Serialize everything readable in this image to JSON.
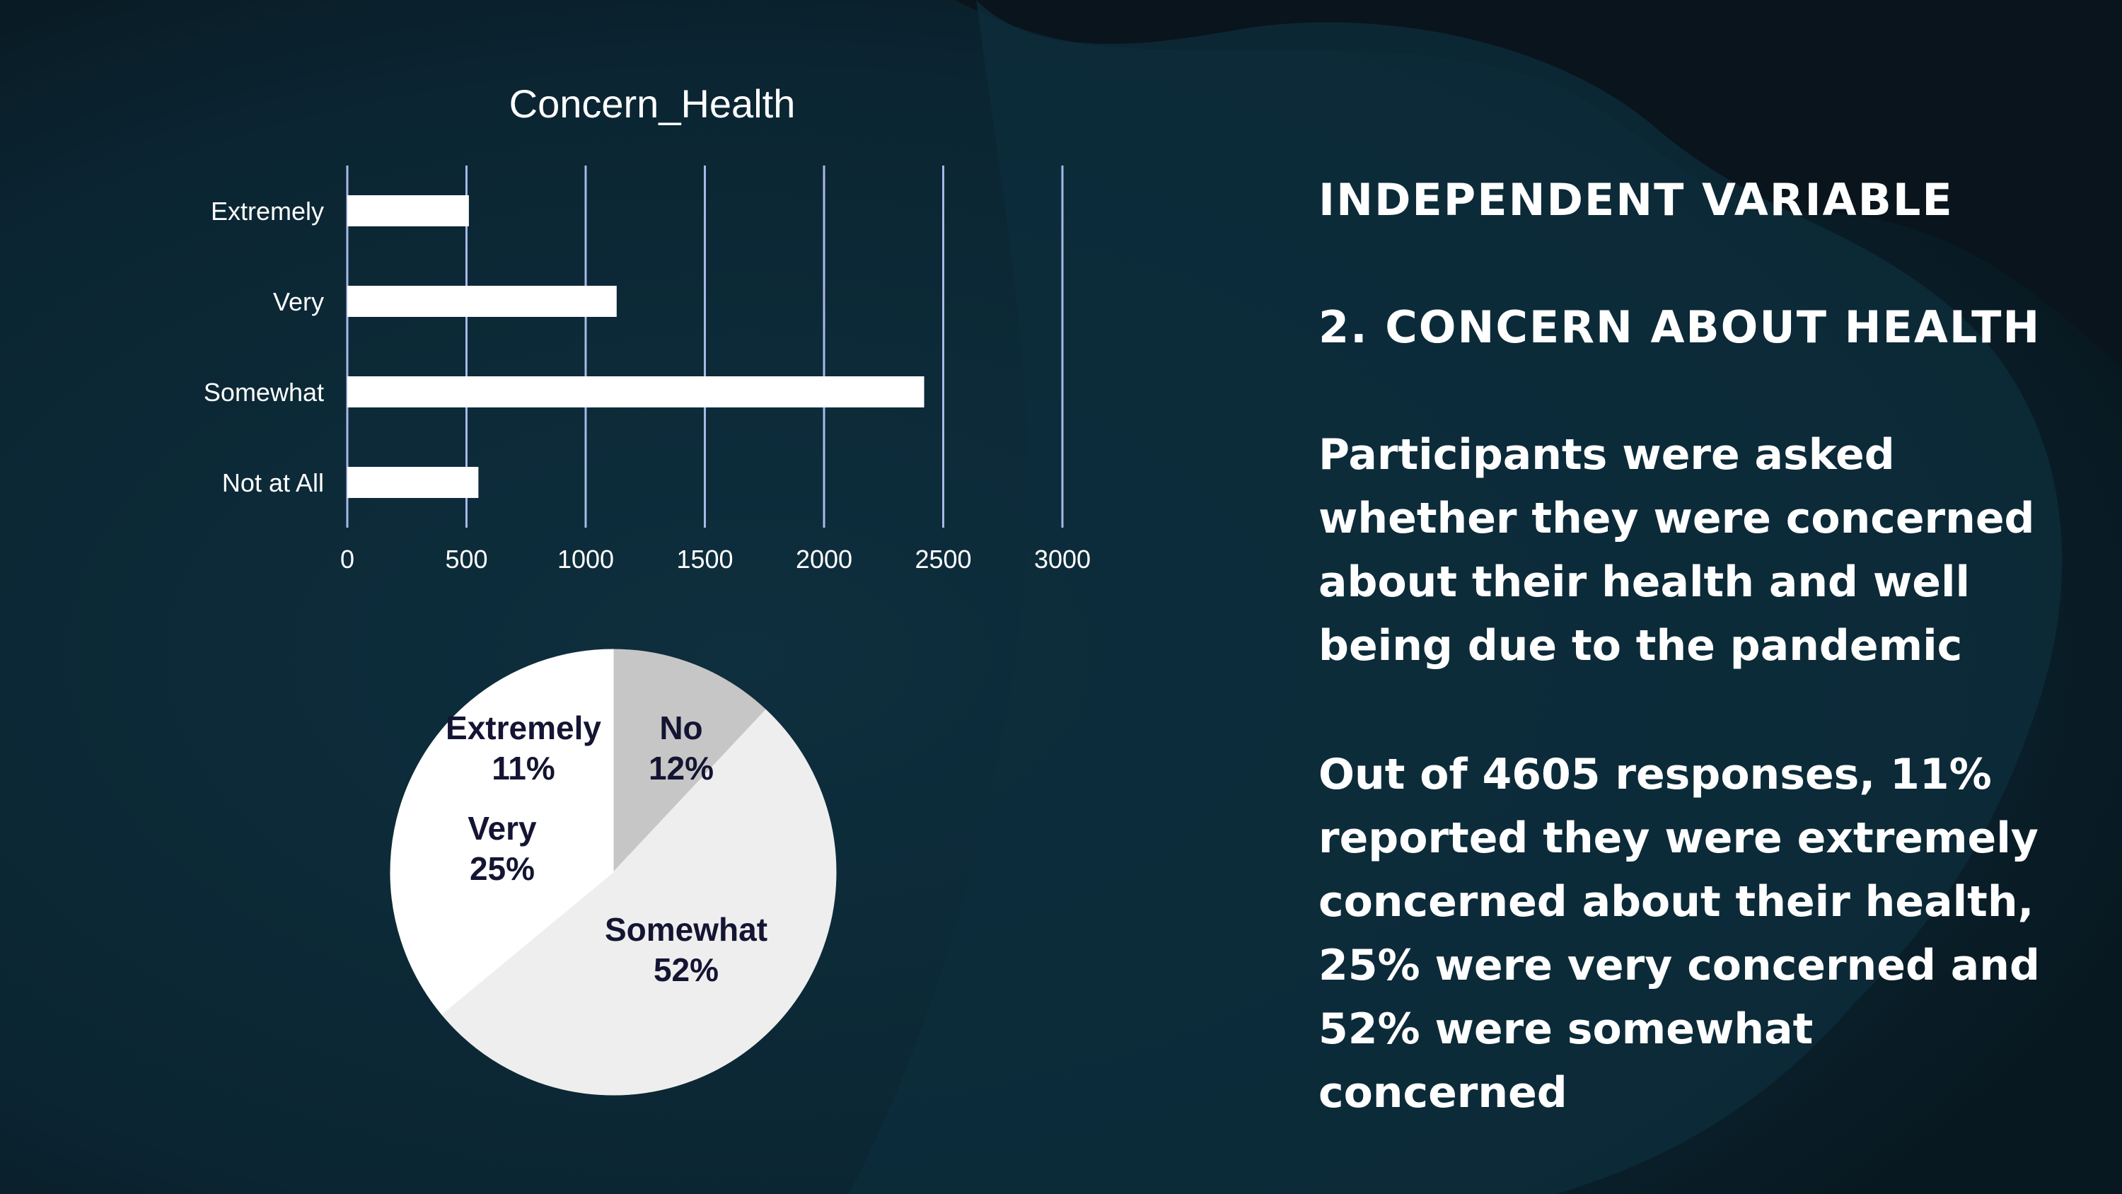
{
  "slide": {
    "heading": "INDEPENDENT VARIABLE",
    "subheading": "2. CONCERN ABOUT HEALTH",
    "paragraph1": "Participants were asked whether they were concerned about their health and well being due to the pandemic",
    "paragraph2": "Out of 4605 responses, 11% reported they were extremely concerned about their health, 25% were very concerned and 52% were somewhat concerned"
  },
  "colors": {
    "background": "#0a1e2a",
    "blob": "#0d2d3c",
    "gridline": "#a8b8e8",
    "bar": "#ffffff",
    "pie_label": "#141433"
  },
  "chart_data": [
    {
      "type": "bar",
      "orientation": "horizontal",
      "title": "Concern_Health",
      "categories": [
        "Extremely",
        "Very",
        "Somewhat",
        "Not at All"
      ],
      "values": [
        510,
        1130,
        2420,
        550
      ],
      "xlim": [
        0,
        3000
      ],
      "xticks": [
        0,
        500,
        1000,
        1500,
        2000,
        2500,
        3000
      ],
      "grid": true
    },
    {
      "type": "pie",
      "slices": [
        {
          "label": "No",
          "percent_label": "12%",
          "value": 12,
          "color": "#c6c6c6"
        },
        {
          "label": "Somewhat",
          "percent_label": "52%",
          "value": 52,
          "color": "#eeeeee"
        },
        {
          "label": "Very",
          "percent_label": "25%",
          "value": 25,
          "color": "#ffffff"
        },
        {
          "label": "Extremely",
          "percent_label": "11%",
          "value": 11,
          "color": "#ffffff"
        }
      ]
    }
  ]
}
